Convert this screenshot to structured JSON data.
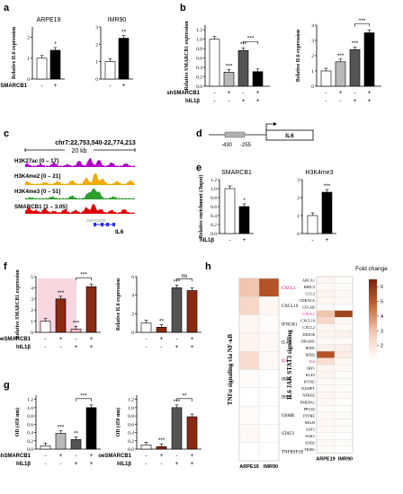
{
  "panels": {
    "a": "a",
    "b": "b",
    "c": "c",
    "d": "d",
    "e": "e",
    "f": "f",
    "g": "g",
    "h": "h"
  },
  "colors": {
    "white": "#ffffff",
    "black": "#000000",
    "gray_light": "#b8b8b8",
    "gray_mid": "#8a8a8a",
    "gray_dark": "#545454",
    "pink": "#f2b6c6",
    "pink_bg": "#f9d7e0",
    "brown": "#8b2a12",
    "purple": "#b000c8",
    "orange": "#f2a900",
    "green": "#2e9e2e",
    "red": "#e00000",
    "blue": "#2a2aff"
  },
  "chart_data": [
    {
      "id": "a1",
      "type": "bar",
      "title": "ARPE19",
      "ylabel": "Relative IL6 expression",
      "ylim": [
        0,
        2.5
      ],
      "yticks": [
        "0",
        "1",
        "2"
      ],
      "ytick_values": [
        0,
        1,
        2
      ],
      "rows": [
        {
          "label": "shSMARCB1",
          "values": [
            "-",
            "+"
          ]
        }
      ],
      "series": [
        {
          "values": [
            1.0,
            1.38
          ]
        }
      ],
      "fills": [
        "#ffffff",
        "#000000"
      ],
      "sig": [
        {
          "bar": 1,
          "text": "*"
        }
      ]
    },
    {
      "id": "a2",
      "type": "bar",
      "title": "IMR90",
      "ylabel": "",
      "ylim": [
        0,
        3
      ],
      "yticks": [
        "0",
        "1",
        "2",
        "3"
      ],
      "ytick_values": [
        0,
        1,
        2,
        3
      ],
      "rows": [
        {
          "label": "",
          "values": [
            "-",
            "+"
          ]
        }
      ],
      "series": [
        {
          "values": [
            1.0,
            2.35
          ]
        }
      ],
      "fills": [
        "#ffffff",
        "#000000"
      ],
      "sig": [
        {
          "bar": 1,
          "text": "**"
        }
      ]
    },
    {
      "id": "b1",
      "type": "bar",
      "ylabel": "Relative SMARCB1 expression",
      "ylim": [
        0,
        1.3
      ],
      "yticks": [
        "0.0",
        "0.2",
        "0.4",
        "0.6",
        "0.8",
        "1.0",
        "1.2"
      ],
      "ytick_values": [
        0,
        0.2,
        0.4,
        0.6,
        0.8,
        1.0,
        1.2
      ],
      "rows": [
        {
          "label": "shSMARCB1",
          "values": [
            "-",
            "+",
            "-",
            "+"
          ]
        },
        {
          "label": "hIL1β",
          "values": [
            "-",
            "-",
            "+",
            "+"
          ]
        }
      ],
      "series": [
        {
          "values": [
            1.0,
            0.3,
            0.76,
            0.31
          ]
        }
      ],
      "fills": [
        "#ffffff",
        "#b8b8b8",
        "#545454",
        "#000000"
      ],
      "sig": [
        {
          "bar": 1,
          "text": "***"
        },
        {
          "bar": 2,
          "text": "***"
        }
      ],
      "brackets": [
        {
          "from": 2,
          "to": 3,
          "text": "***"
        }
      ]
    },
    {
      "id": "b2",
      "type": "bar",
      "ylabel": "Relative IL6 expression",
      "ylim": [
        0,
        4
      ],
      "yticks": [
        "0",
        "1",
        "2",
        "3",
        "4"
      ],
      "ytick_values": [
        0,
        1,
        2,
        3,
        4
      ],
      "rows": [
        {
          "label": "",
          "values": [
            "-",
            "+",
            "-",
            "+"
          ]
        },
        {
          "label": "",
          "values": [
            "-",
            "-",
            "+",
            "+"
          ]
        }
      ],
      "series": [
        {
          "values": [
            1.0,
            1.6,
            2.4,
            3.5
          ]
        }
      ],
      "fills": [
        "#ffffff",
        "#b8b8b8",
        "#545454",
        "#000000"
      ],
      "sig": [
        {
          "bar": 1,
          "text": "***"
        },
        {
          "bar": 2,
          "text": "***"
        }
      ],
      "brackets": [
        {
          "from": 2,
          "to": 3,
          "text": "***"
        }
      ]
    },
    {
      "id": "e1",
      "type": "bar",
      "title": "SMARCB1",
      "ylabel": "Relative enrichment (/Input)",
      "ylim": [
        0,
        1.2
      ],
      "yticks": [
        "0.0",
        "0.2",
        "0.4",
        "0.6",
        "0.8",
        "1.0",
        "1.2"
      ],
      "ytick_values": [
        0,
        0.2,
        0.4,
        0.6,
        0.8,
        1.0,
        1.2
      ],
      "rows": [
        {
          "label": "hIL1β",
          "values": [
            "-",
            "+"
          ]
        }
      ],
      "series": [
        {
          "values": [
            1.0,
            0.6
          ]
        }
      ],
      "fills": [
        "#ffffff",
        "#000000"
      ],
      "sig": [
        {
          "bar": 1,
          "text": "*"
        }
      ]
    },
    {
      "id": "e2",
      "type": "bar",
      "title": "H3K4me3",
      "ylabel": "",
      "ylim": [
        0,
        3
      ],
      "yticks": [
        "0",
        "1",
        "2",
        "3"
      ],
      "ytick_values": [
        0,
        1,
        2,
        3
      ],
      "rows": [
        {
          "label": "",
          "values": [
            "-",
            "+"
          ]
        }
      ],
      "series": [
        {
          "values": [
            1.0,
            2.3
          ]
        }
      ],
      "fills": [
        "#ffffff",
        "#000000"
      ],
      "sig": [
        {
          "bar": 1,
          "text": "***"
        }
      ]
    },
    {
      "id": "f1",
      "type": "bar",
      "ylabel": "Relative SMARCB1 expression",
      "ylim": [
        0,
        5
      ],
      "yticks": [
        "0",
        "1",
        "2",
        "3",
        "4",
        "5"
      ],
      "ytick_values": [
        0,
        1,
        2,
        3,
        4,
        5
      ],
      "rows": [
        {
          "label": "oeSMARCB1",
          "values": [
            "-",
            "+",
            "-",
            "+"
          ]
        },
        {
          "label": "hIL1β",
          "values": [
            "-",
            "-",
            "+",
            "+"
          ]
        }
      ],
      "series": [
        {
          "values": [
            1.0,
            3.0,
            0.3,
            4.1
          ]
        }
      ],
      "fills": [
        "#ffffff",
        "#8b2a12",
        "#f2b6c6",
        "#8b2a12"
      ],
      "sig": [
        {
          "bar": 1,
          "text": "***"
        },
        {
          "bar": 2,
          "text": "***"
        }
      ],
      "brackets": [
        {
          "from": 2,
          "to": 3,
          "text": "***"
        }
      ],
      "bgshade": true
    },
    {
      "id": "f2",
      "type": "bar",
      "ylabel": "Relative IL6 expression",
      "ylim": [
        0,
        6
      ],
      "yticks": [
        "0",
        "2",
        "4",
        "6"
      ],
      "ytick_values": [
        0,
        2,
        4,
        6
      ],
      "rows": [
        {
          "label": "",
          "values": [
            "-",
            "+",
            "-",
            "+"
          ]
        },
        {
          "label": "",
          "values": [
            "-",
            "-",
            "+",
            "+"
          ]
        }
      ],
      "series": [
        {
          "values": [
            1.0,
            0.55,
            4.8,
            4.5
          ]
        }
      ],
      "fills": [
        "#ffffff",
        "#8b2a12",
        "#545454",
        "#8b2a12"
      ],
      "sig": [
        {
          "bar": 1,
          "text": "**"
        },
        {
          "bar": 2,
          "text": "***"
        }
      ],
      "brackets": [
        {
          "from": 2,
          "to": 3,
          "text": "ns"
        }
      ]
    },
    {
      "id": "g1",
      "type": "bar",
      "ylabel": "OD (450 nm)",
      "ylim": [
        0,
        1.3
      ],
      "yticks": [
        "0.0",
        "0.2",
        "0.4",
        "0.6",
        "0.8",
        "1.0",
        "1.2"
      ],
      "ytick_values": [
        0,
        0.2,
        0.4,
        0.6,
        0.8,
        1.0,
        1.2
      ],
      "rows": [
        {
          "label": "shSMARCB1",
          "values": [
            "-",
            "+",
            "-",
            "+"
          ]
        },
        {
          "label": "hIL1β",
          "values": [
            "-",
            "-",
            "+",
            "+"
          ]
        }
      ],
      "series": [
        {
          "values": [
            0.08,
            0.38,
            0.23,
            1.0
          ]
        }
      ],
      "fills": [
        "#ffffff",
        "#b8b8b8",
        "#545454",
        "#000000"
      ],
      "sig": [
        {
          "bar": 1,
          "text": "***"
        },
        {
          "bar": 2,
          "text": "**"
        }
      ],
      "brackets": [
        {
          "from": 2,
          "to": 3,
          "text": "***"
        }
      ]
    },
    {
      "id": "g2",
      "type": "bar",
      "ylabel": "OD (450 nm)",
      "ylim": [
        0,
        1.3
      ],
      "yticks": [
        "0.0",
        "0.2",
        "0.4",
        "0.6",
        "0.8",
        "1.0",
        "1.2"
      ],
      "ytick_values": [
        0,
        0.2,
        0.4,
        0.6,
        0.8,
        1.0,
        1.2
      ],
      "rows": [
        {
          "label": "oeSMARCB1",
          "values": [
            "-",
            "+",
            "-",
            "+"
          ]
        },
        {
          "label": "hIL1β",
          "values": [
            "-",
            "-",
            "+",
            "+"
          ]
        }
      ],
      "series": [
        {
          "values": [
            0.1,
            0.06,
            1.0,
            0.78
          ]
        }
      ],
      "fills": [
        "#ffffff",
        "#8b2a12",
        "#545454",
        "#8b2a12"
      ],
      "sig": [
        {
          "bar": 1,
          "text": "***"
        },
        {
          "bar": 2,
          "text": "***"
        }
      ],
      "brackets": [
        {
          "from": 2,
          "to": 3,
          "text": "**"
        }
      ]
    },
    {
      "id": "h1",
      "type": "heatmap",
      "ylabel": "TNFα signaling via NF-κB",
      "columns": [
        "ARPE19",
        "IMR90"
      ],
      "genes": [
        "CXCL1",
        "CXCL10",
        "IFNGR1",
        "IL4R",
        "IL6",
        "IRF1",
        "IRF9",
        "OSMR",
        "STAT3",
        "TNFRSF1B"
      ],
      "highlight": [
        "CXCL1",
        "IL6"
      ],
      "values": [
        [
          3.0,
          5.2
        ],
        [
          2.4,
          1.3
        ],
        [
          1.3,
          1.1
        ],
        [
          1.4,
          1.2
        ],
        [
          2.2,
          1.2
        ],
        [
          1.1,
          1.0
        ],
        [
          1.0,
          1.0
        ],
        [
          1.1,
          1.0
        ],
        [
          1.2,
          1.0
        ],
        [
          1.0,
          1.0
        ]
      ]
    },
    {
      "id": "h2",
      "type": "heatmap",
      "ylabel": "IL6 JAK STAT3 signaling",
      "columns": [
        "ARPE19",
        "IMR90"
      ],
      "genes": [
        "ABCA1",
        "BIRC3",
        "CCL3",
        "CDKN1A",
        "CFLAR",
        "CXCL1",
        "CXCL10",
        "CXCL2",
        "DDX58",
        "DRAM1",
        "IFIH1",
        "IFIH2",
        "IL6",
        "IRF1",
        "KLF2",
        "KYNU",
        "NAMPT",
        "NFKB2",
        "PMEPA1",
        "PPGS2",
        "PTPRE",
        "RELB",
        "SAT1",
        "SGK1",
        "SOD2",
        "TRIB1"
      ],
      "highlight": [
        "CXCL1",
        "IL6"
      ],
      "values": [
        [
          1.3,
          1.1
        ],
        [
          1.2,
          1.1
        ],
        [
          1.4,
          1.2
        ],
        [
          1.3,
          1.2
        ],
        [
          1.2,
          1.1
        ],
        [
          3.0,
          5.6
        ],
        [
          2.4,
          1.3
        ],
        [
          1.3,
          1.2
        ],
        [
          1.4,
          1.5
        ],
        [
          1.2,
          1.1
        ],
        [
          1.5,
          1.6
        ],
        [
          5.2,
          1.7
        ],
        [
          2.2,
          1.3
        ],
        [
          1.3,
          1.2
        ],
        [
          1.4,
          1.1
        ],
        [
          1.2,
          1.1
        ],
        [
          1.2,
          1.1
        ],
        [
          1.3,
          1.1
        ],
        [
          1.2,
          1.1
        ],
        [
          1.1,
          1.0
        ],
        [
          1.2,
          1.1
        ],
        [
          1.2,
          1.1
        ],
        [
          1.2,
          1.1
        ],
        [
          1.1,
          1.0
        ],
        [
          1.2,
          1.1
        ],
        [
          1.1,
          1.0
        ]
      ]
    }
  ],
  "legend_h": {
    "title": "Fold change",
    "ticks": [
      "6",
      "5",
      "4",
      "3",
      "2"
    ],
    "tick_values": [
      6,
      5,
      4,
      3,
      2
    ],
    "range": [
      1,
      6.5
    ]
  },
  "track": {
    "coords": "chr7:22,753,540-22,774,213",
    "scale": "20 kb",
    "tracks": [
      {
        "label": "H3K27ac [0 – 17]",
        "color": "#b000c8"
      },
      {
        "label": "H3K4me2 [0 – 21]",
        "color": "#f2a900"
      },
      {
        "label": "H3K4me3 [0 – 51]",
        "color": "#2e9e2e"
      },
      {
        "label": "SMARCB1 [1 – 3.05]",
        "color": "#e00000"
      }
    ],
    "gene": "IL6"
  },
  "promoter": {
    "gene": "IL6",
    "left": "-430",
    "right": "-255"
  }
}
